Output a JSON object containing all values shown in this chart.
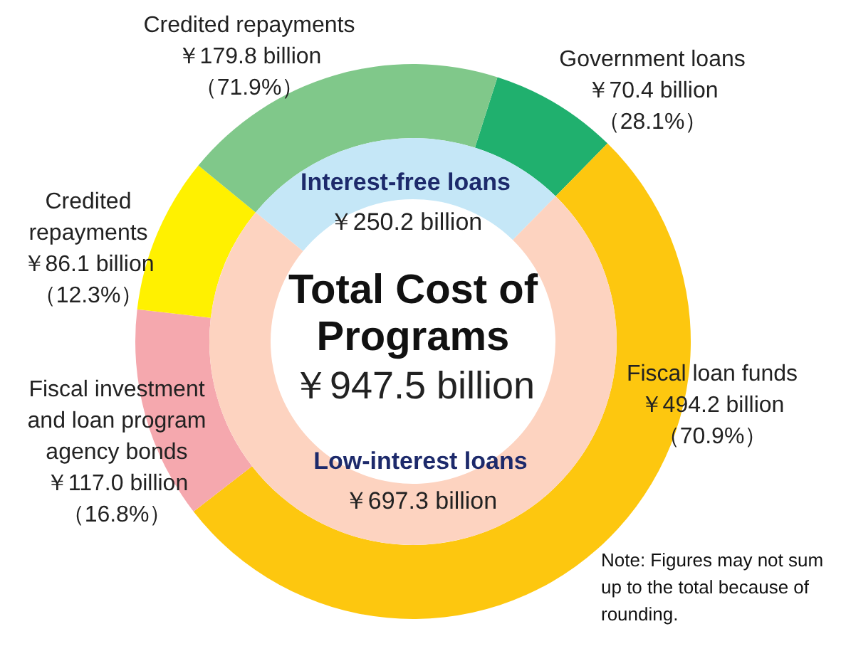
{
  "chart_data": [
    {
      "type": "donut",
      "title": "Total Cost of Programs",
      "subtitle": "￥947.5 billion",
      "categories": [
        "Interest-free loans",
        "Low-interest loans"
      ],
      "values": [
        250.2,
        697.3
      ],
      "colors": [
        "#c5e7f7",
        "#fdd3c0"
      ],
      "value_labels": [
        "￥250.2 billion",
        "￥697.3 billion"
      ]
    },
    {
      "type": "donut",
      "categories": [
        "Government loans",
        "Fiscal loan funds",
        "Fiscal investment and loan program agency bonds",
        "Credited repayments",
        "Credited repayments"
      ],
      "values": [
        70.4,
        494.2,
        117.0,
        86.1,
        179.8
      ],
      "colors": [
        "#20b06e",
        "#fdc70f",
        "#f5a8ae",
        "#fff100",
        "#80c88a"
      ],
      "value_labels": [
        "￥70.4 billion",
        "￥494.2 billion",
        "￥117.0 billion",
        "￥86.1 billion",
        "￥179.8 billion"
      ],
      "annotations": [
        "（28.1%）",
        "（70.9%）",
        "（16.8%）",
        "（12.3%）",
        "（71.9%）",
        "Note: Figures may not sum up to the total because of rounding."
      ]
    }
  ]
}
